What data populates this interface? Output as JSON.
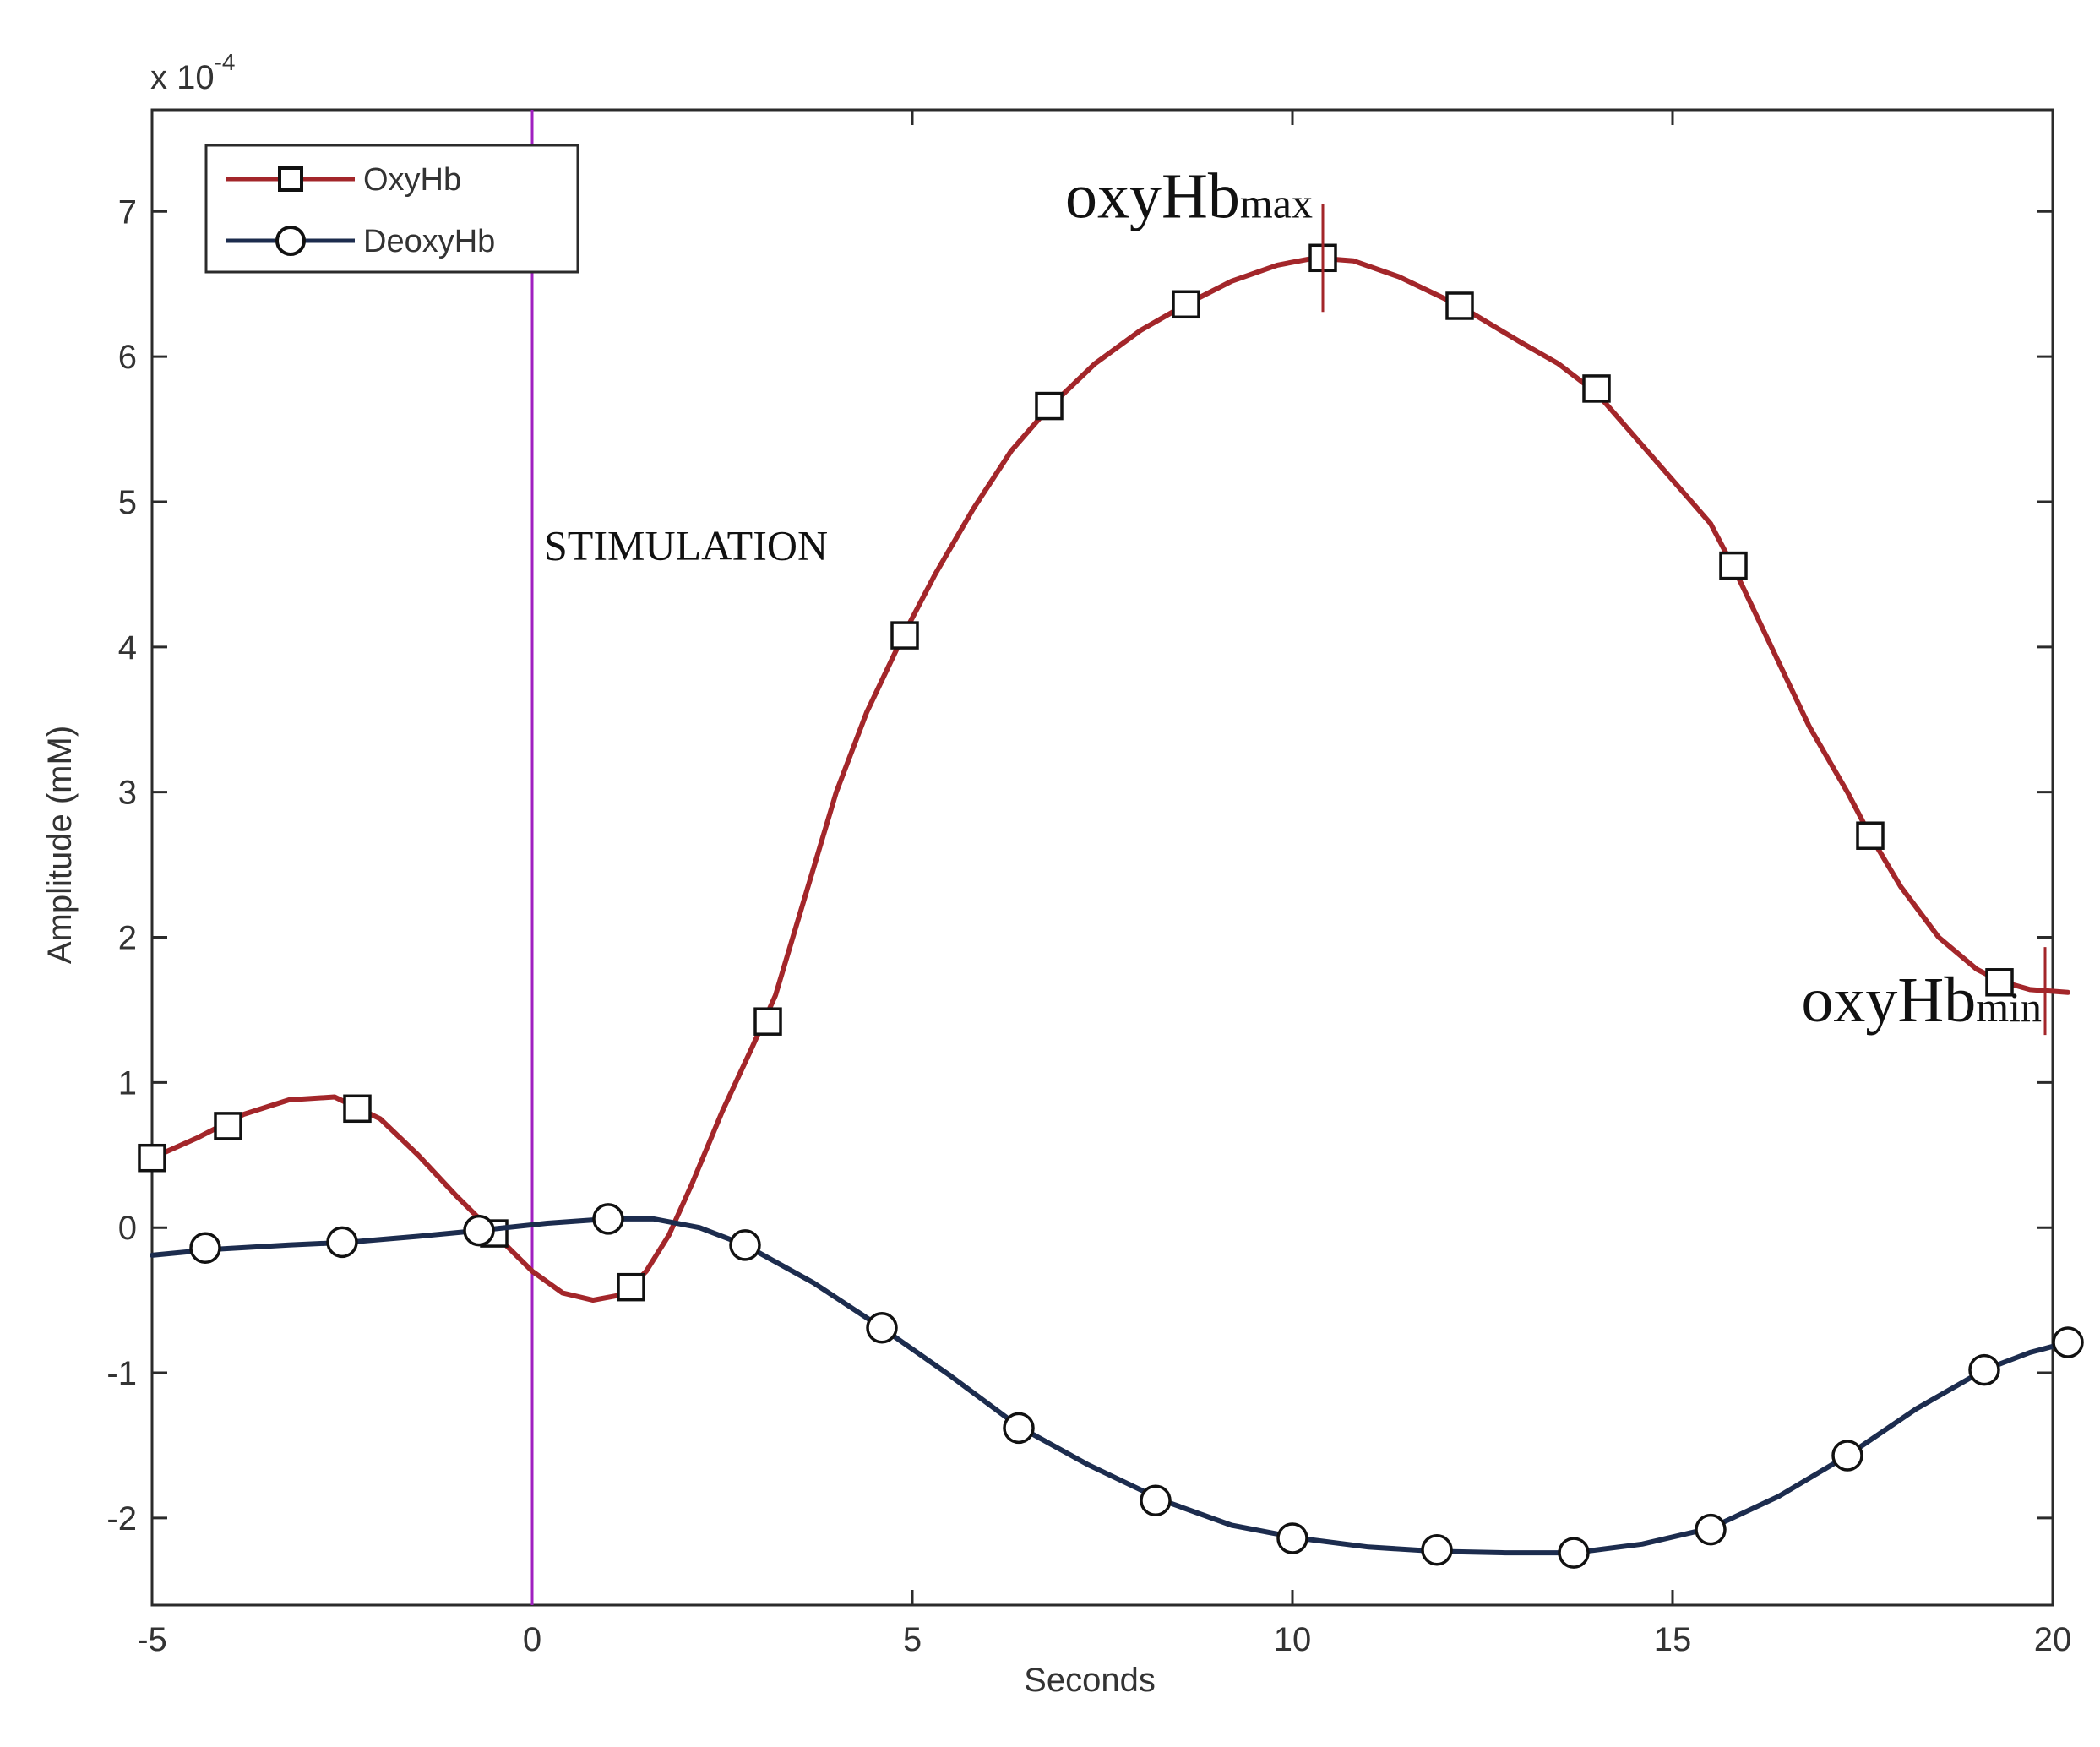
{
  "chart_data": {
    "type": "line",
    "xlabel": "Seconds",
    "ylabel": "Amplitude    (mM)",
    "exponent_label": {
      "base": "x 10",
      "exp": "-4"
    },
    "xlim": [
      -5,
      20
    ],
    "ylim": [
      -2.6,
      7.7
    ],
    "xticks": [
      -5,
      0,
      5,
      10,
      15,
      20
    ],
    "yticks": [
      -2,
      -1,
      0,
      1,
      2,
      3,
      4,
      5,
      6,
      7
    ],
    "grid": false,
    "legend_position": "top-left",
    "series": [
      {
        "name": "OxyHb",
        "color": "#a3262a",
        "marker": "square",
        "curve": [
          [
            -5,
            0.48
          ],
          [
            -4.4,
            0.62
          ],
          [
            -3.8,
            0.78
          ],
          [
            -3.2,
            0.88
          ],
          [
            -2.6,
            0.9
          ],
          [
            -2.0,
            0.75
          ],
          [
            -1.5,
            0.5
          ],
          [
            -1.0,
            0.22
          ],
          [
            -0.5,
            -0.04
          ],
          [
            0,
            -0.3
          ],
          [
            0.4,
            -0.45
          ],
          [
            0.8,
            -0.5
          ],
          [
            1.2,
            -0.46
          ],
          [
            1.5,
            -0.3
          ],
          [
            1.8,
            -0.05
          ],
          [
            2.1,
            0.3
          ],
          [
            2.5,
            0.8
          ],
          [
            2.9,
            1.25
          ],
          [
            3.2,
            1.6
          ],
          [
            3.6,
            2.3
          ],
          [
            4.0,
            3.0
          ],
          [
            4.4,
            3.55
          ],
          [
            4.9,
            4.1
          ],
          [
            5.3,
            4.5
          ],
          [
            5.8,
            4.95
          ],
          [
            6.3,
            5.35
          ],
          [
            6.8,
            5.65
          ],
          [
            7.4,
            5.95
          ],
          [
            8.0,
            6.18
          ],
          [
            8.6,
            6.36
          ],
          [
            9.2,
            6.52
          ],
          [
            9.8,
            6.63
          ],
          [
            10.3,
            6.68
          ],
          [
            10.8,
            6.66
          ],
          [
            11.4,
            6.55
          ],
          [
            12.2,
            6.35
          ],
          [
            13.0,
            6.1
          ],
          [
            13.5,
            5.95
          ],
          [
            14.0,
            5.75
          ],
          [
            14.5,
            5.45
          ],
          [
            15.0,
            5.15
          ],
          [
            15.5,
            4.85
          ],
          [
            15.8,
            4.55
          ],
          [
            16.3,
            4.0
          ],
          [
            16.8,
            3.45
          ],
          [
            17.3,
            3.0
          ],
          [
            17.6,
            2.7
          ],
          [
            18.0,
            2.35
          ],
          [
            18.5,
            2.0
          ],
          [
            19.0,
            1.78
          ],
          [
            19.3,
            1.7
          ],
          [
            19.7,
            1.64
          ],
          [
            20.2,
            1.62
          ]
        ],
        "markers": [
          [
            -5,
            0.48
          ],
          [
            -4.0,
            0.7
          ],
          [
            -2.3,
            0.82
          ],
          [
            -0.5,
            -0.04
          ],
          [
            1.3,
            -0.41
          ],
          [
            3.1,
            1.42
          ],
          [
            4.9,
            4.08
          ],
          [
            6.8,
            5.66
          ],
          [
            8.6,
            6.36
          ],
          [
            10.4,
            6.68
          ],
          [
            12.2,
            6.35
          ],
          [
            14.0,
            5.78
          ],
          [
            15.8,
            4.56
          ],
          [
            17.6,
            2.7
          ],
          [
            19.3,
            1.69
          ]
        ]
      },
      {
        "name": "DeoxyHb",
        "color": "#1c2c4e",
        "marker": "circle",
        "curve": [
          [
            -5,
            -0.19
          ],
          [
            -4.2,
            -0.15
          ],
          [
            -3.2,
            -0.12
          ],
          [
            -2.4,
            -0.1
          ],
          [
            -1.5,
            -0.06
          ],
          [
            -0.7,
            -0.02
          ],
          [
            0.2,
            0.03
          ],
          [
            1.0,
            0.06
          ],
          [
            1.6,
            0.06
          ],
          [
            2.2,
            0.0
          ],
          [
            2.8,
            -0.12
          ],
          [
            3.7,
            -0.38
          ],
          [
            4.6,
            -0.69
          ],
          [
            5.5,
            -1.02
          ],
          [
            6.4,
            -1.37
          ],
          [
            7.3,
            -1.63
          ],
          [
            8.3,
            -1.88
          ],
          [
            9.2,
            -2.05
          ],
          [
            10.1,
            -2.14
          ],
          [
            11.0,
            -2.2
          ],
          [
            11.9,
            -2.23
          ],
          [
            12.8,
            -2.24
          ],
          [
            13.7,
            -2.24
          ],
          [
            14.6,
            -2.18
          ],
          [
            15.5,
            -2.07
          ],
          [
            16.4,
            -1.85
          ],
          [
            17.3,
            -1.57
          ],
          [
            18.2,
            -1.25
          ],
          [
            19.1,
            -0.98
          ],
          [
            19.7,
            -0.86
          ],
          [
            20.2,
            -0.79
          ]
        ],
        "markers": [
          [
            -4.3,
            -0.14
          ],
          [
            -2.5,
            -0.1
          ],
          [
            -0.7,
            -0.02
          ],
          [
            1.0,
            0.06
          ],
          [
            2.8,
            -0.12
          ],
          [
            4.6,
            -0.69
          ],
          [
            6.4,
            -1.38
          ],
          [
            8.2,
            -1.88
          ],
          [
            10.0,
            -2.14
          ],
          [
            11.9,
            -2.22
          ],
          [
            13.7,
            -2.24
          ],
          [
            15.5,
            -2.08
          ],
          [
            17.3,
            -1.57
          ],
          [
            19.1,
            -0.98
          ],
          [
            20.2,
            -0.79
          ]
        ]
      }
    ],
    "annotations": {
      "stimulation": {
        "x": 0,
        "label": "STIMULATION",
        "color": "#a020c0"
      },
      "max": {
        "x": 10.4,
        "y": 6.68,
        "label_main": "oxyHb",
        "label_sub": "max"
      },
      "min": {
        "x": 19.9,
        "y": 1.63,
        "label_main": "oxyHb",
        "label_sub": "min"
      }
    }
  }
}
